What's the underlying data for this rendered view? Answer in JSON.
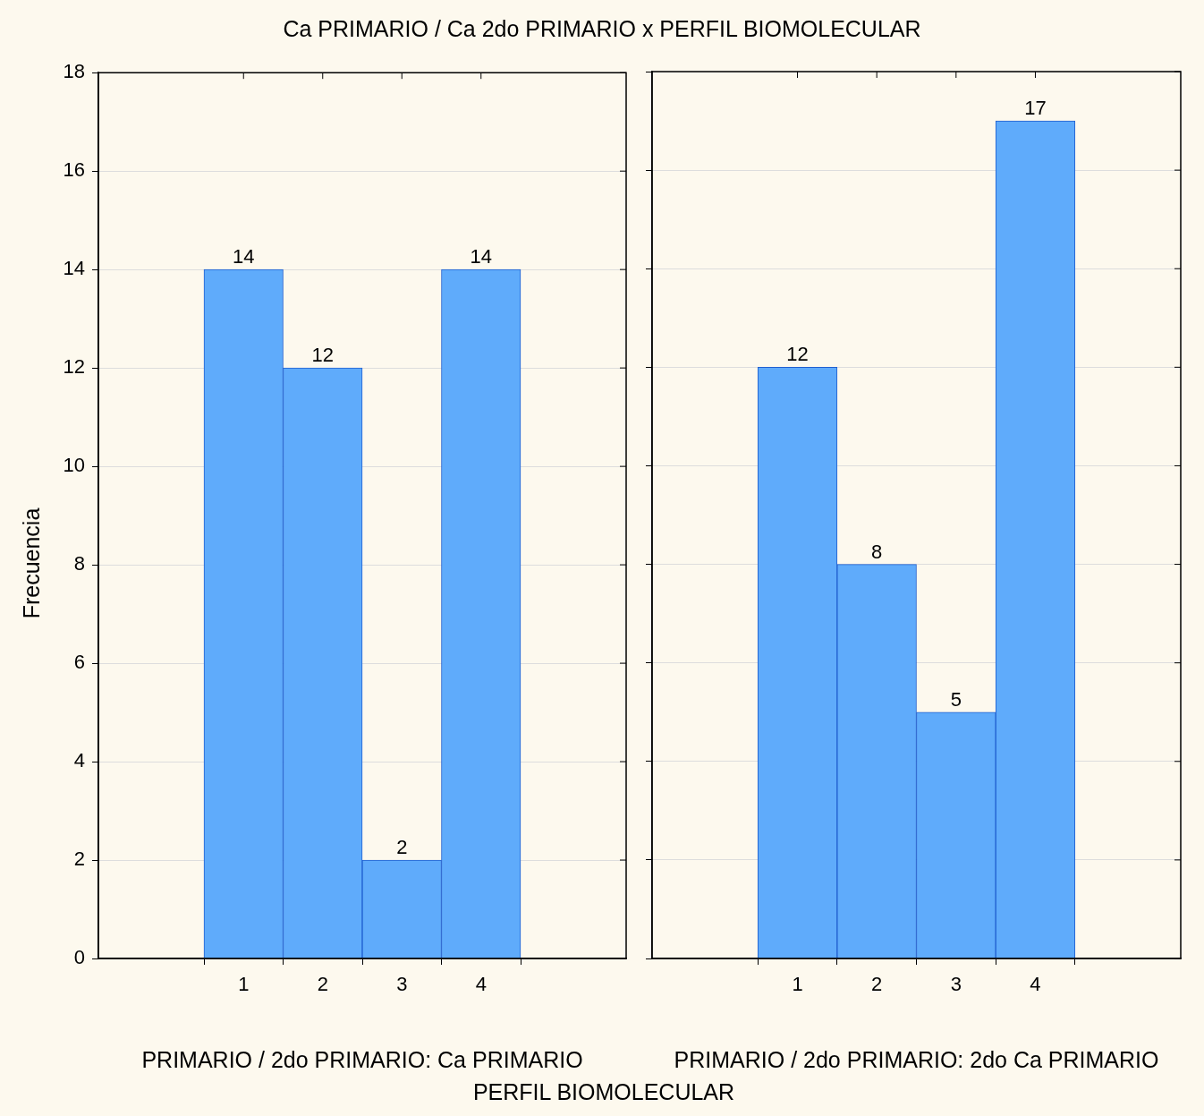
{
  "chart_data": [
    {
      "type": "bar",
      "title": "Ca PRIMARIO / Ca 2do PRIMARIO x PERFIL BIOMOLECULAR",
      "xlabel": "PRIMARIO / 2do PRIMARIO: Ca PRIMARIO",
      "ylabel": "Frecuencia",
      "annotations": [
        "PERFIL BIOMOLECULAR"
      ],
      "categories": [
        "1",
        "2",
        "3",
        "4"
      ],
      "values": [
        14,
        12,
        2,
        14
      ],
      "color": "#5fabfb",
      "ylim": [
        0,
        18
      ],
      "yticks": [
        0,
        2,
        4,
        6,
        8,
        10,
        12,
        14,
        16,
        18
      ],
      "grid": "y",
      "data_labels": true
    },
    {
      "type": "bar",
      "xlabel": "PRIMARIO / 2do PRIMARIO: 2do Ca PRIMARIO",
      "categories": [
        "1",
        "2",
        "3",
        "4"
      ],
      "values": [
        12,
        8,
        5,
        17
      ],
      "color": "#5fabfb",
      "ylim": [
        0,
        18
      ],
      "yticks": [
        0,
        2,
        4,
        6,
        8,
        10,
        12,
        14,
        16,
        18
      ],
      "grid": "y",
      "data_labels": true,
      "tick_labels": "x"
    }
  ]
}
